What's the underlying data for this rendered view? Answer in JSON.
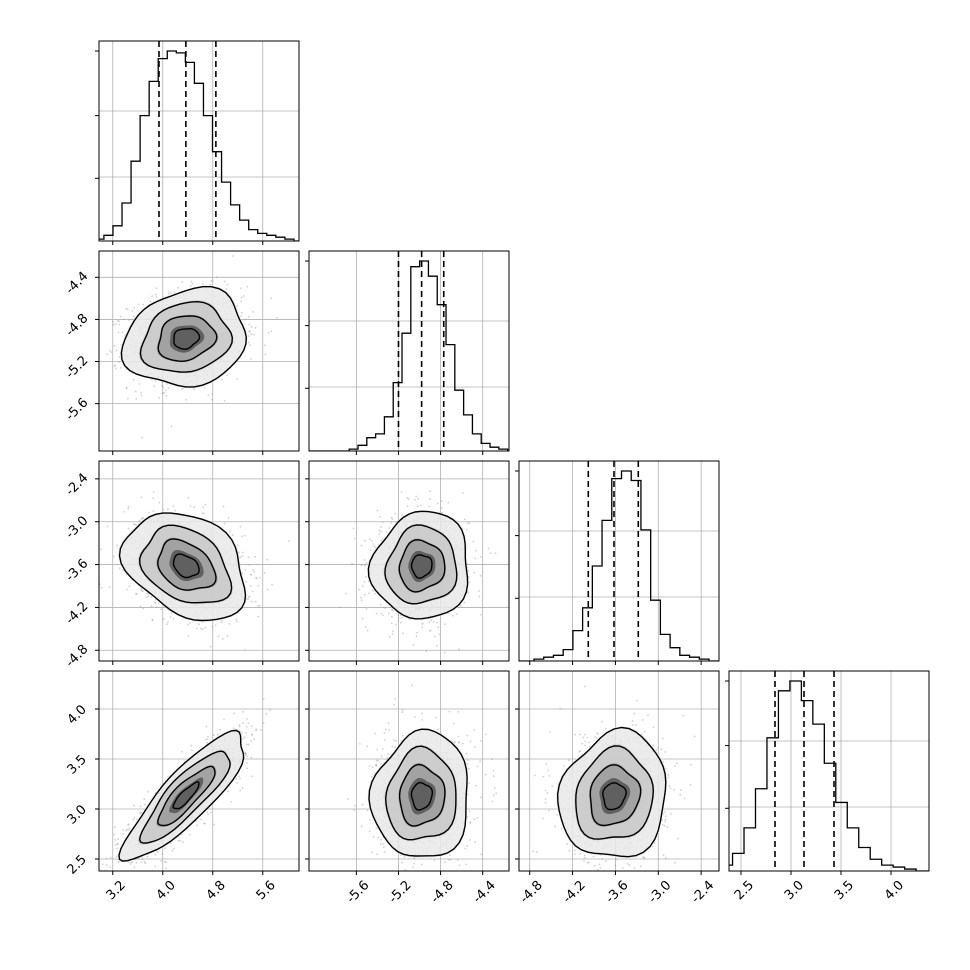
{
  "chart_data": {
    "type": "corner",
    "parameters": [
      {
        "ticks": [
          "3.2",
          "4.0",
          "4.8",
          "5.6"
        ],
        "tick_values": [
          3.2,
          4.0,
          4.8,
          5.6
        ],
        "range": [
          2.98,
          6.18
        ],
        "hist": [
          1,
          3,
          8,
          20,
          42,
          66,
          84,
          96,
          100,
          99,
          94,
          83,
          66,
          47,
          31,
          19,
          11,
          6,
          4,
          3,
          2,
          1
        ],
        "quantiles": [
          3.94,
          4.37,
          4.85
        ],
        "cov_dir": 1
      },
      {
        "ticks": [
          "-5.6",
          "-5.2",
          "-4.8",
          "-4.4"
        ],
        "tick_values": [
          -5.6,
          -5.2,
          -4.8,
          -4.4
        ],
        "range": [
          -6.05,
          -4.15
        ],
        "hist": [
          1,
          3,
          7,
          9,
          18,
          36,
          62,
          97,
          100,
          92,
          77,
          56,
          32,
          19,
          9,
          4,
          2,
          1
        ],
        "quantiles": [
          -5.2,
          -4.98,
          -4.77
        ],
        "cov_dir": 0
      },
      {
        "ticks": [
          "-4.8",
          "-4.2",
          "-3.6",
          "-3.0",
          "-2.4"
        ],
        "tick_values": [
          -4.8,
          -4.2,
          -3.6,
          -3.0,
          -2.4
        ],
        "range": [
          -4.95,
          -2.15
        ],
        "hist": [
          1,
          2,
          3,
          6,
          16,
          28,
          50,
          74,
          96,
          100,
          95,
          69,
          32,
          14,
          7,
          3,
          2,
          1
        ],
        "quantiles": [
          -3.98,
          -3.62,
          -3.28
        ],
        "cov_dir": -1
      },
      {
        "ticks": [
          "2.5",
          "3.0",
          "3.5",
          "4.0"
        ],
        "tick_values": [
          2.5,
          3.0,
          3.5,
          4.0
        ],
        "range": [
          2.38,
          4.38
        ],
        "hist": [
          1,
          3,
          9,
          22,
          42,
          68,
          92,
          97,
          87,
          75,
          55,
          35,
          22,
          12,
          6,
          3,
          2,
          1
        ],
        "quantiles": [
          2.84,
          3.13,
          3.43
        ],
        "cov_dir": 0
      }
    ],
    "correlations": [
      [
        1,
        0.15,
        -0.3,
        0.85
      ],
      [
        0.15,
        1,
        0.05,
        0.05
      ],
      [
        -0.3,
        0.05,
        1,
        0.1
      ],
      [
        0.85,
        0.05,
        0.1,
        1
      ]
    ],
    "quantile_levels": [
      0.16,
      0.5,
      0.84
    ],
    "contour_levels": [
      0.5,
      1.0,
      1.5,
      2.0
    ],
    "grid": true,
    "scatter_color": "#9a9a9a",
    "line_color": "#000000",
    "grid_color": "#b0b0b0"
  }
}
